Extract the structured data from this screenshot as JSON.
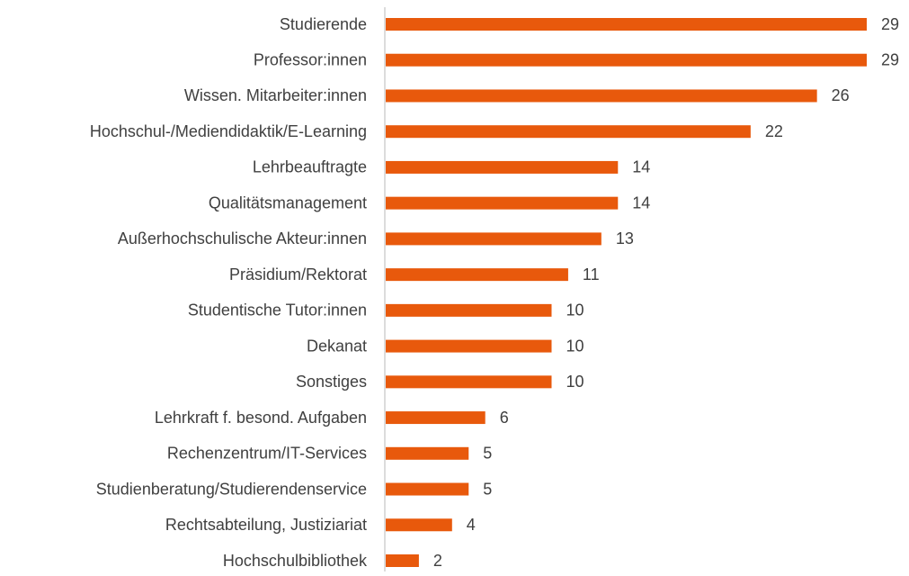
{
  "chart_data": {
    "type": "bar",
    "orientation": "horizontal",
    "categories": [
      "Studierende",
      "Professor:innen",
      "Wissen.  Mitarbeiter:innen",
      "Hochschul-/Mediendidaktik/E-Learning",
      "Lehrbeauftragte",
      "Qualitätsmanagement",
      "Außerhochschulische Akteur:innen",
      "Präsidium/Rektorat",
      "Studentische Tutor:innen",
      "Dekanat",
      "Sonstiges",
      "Lehrkraft f. besond. Aufgaben",
      "Rechenzentrum/IT-Services",
      "Studienberatung/Studierendenservice",
      "Rechtsabteilung, Justiziariat",
      "Hochschulbibliothek"
    ],
    "values": [
      29,
      29,
      26,
      22,
      14,
      14,
      13,
      11,
      10,
      10,
      10,
      6,
      5,
      5,
      4,
      2
    ],
    "color": "#e8590c"
  }
}
